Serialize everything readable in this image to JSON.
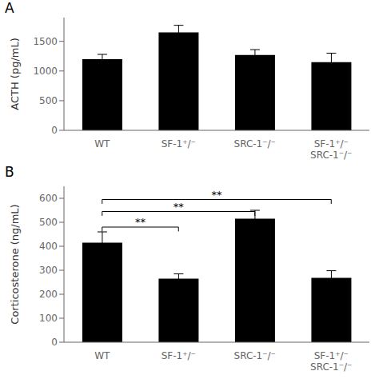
{
  "chart_data": [
    {
      "type": "bar",
      "title": "A",
      "categories": [
        "WT",
        "SF-1⁺/⁻",
        "SRC-1⁻/⁻",
        "SF-1⁺/⁻\nSRC-1⁻/⁻"
      ],
      "values": [
        1200,
        1650,
        1270,
        1150
      ],
      "errors": [
        80,
        120,
        90,
        150
      ],
      "ylabel": "ACTH (pg/mL)",
      "ylim": [
        0,
        1900
      ],
      "yticks": [
        0,
        500,
        1000,
        1500
      ],
      "color": "#000000"
    },
    {
      "type": "bar",
      "title": "B",
      "categories": [
        "WT",
        "SF-1⁺/⁻",
        "SRC-1⁻/⁻",
        "SF-1⁺/⁻\nSRC-1⁻/⁻"
      ],
      "values": [
        415,
        265,
        515,
        268
      ],
      "errors": [
        45,
        20,
        35,
        30
      ],
      "ylabel": "Corticosterone (ng/mL)",
      "ylim": [
        0,
        650
      ],
      "yticks": [
        0,
        100,
        200,
        300,
        400,
        500,
        600
      ],
      "color": "#000000",
      "annotations": [
        {
          "x1": "WT",
          "x2": "SF-1⁺/⁻",
          "y": 480,
          "label": "**"
        },
        {
          "x1": "WT",
          "x2": "SRC-1⁻/⁻",
          "y": 545,
          "label": "**"
        },
        {
          "x1": "WT",
          "x2": "SF-1⁺/⁻\nSRC-1⁻/⁻",
          "y": 595,
          "label": "**"
        }
      ]
    }
  ]
}
